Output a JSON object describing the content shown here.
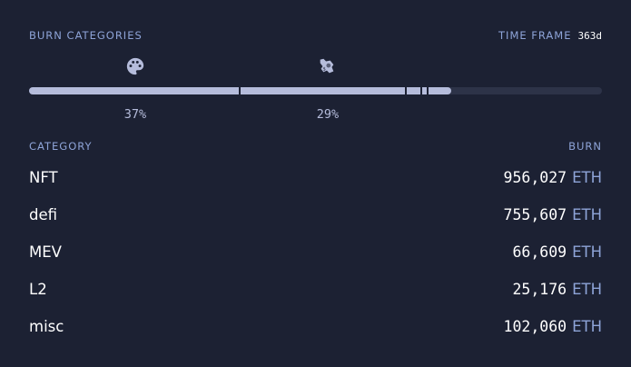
{
  "header": {
    "title": "BURN CATEGORIES",
    "time_frame_label": "TIME FRAME",
    "time_frame_value": "363d"
  },
  "bar": {
    "segments": [
      {
        "category": "NFT",
        "share": 0.37,
        "icon": "palette-icon",
        "label": "37%"
      },
      {
        "category": "defi",
        "share": 0.29,
        "icon": "defi-icon",
        "label": "29%"
      },
      {
        "category": "MEV",
        "share": 0.027
      },
      {
        "category": "L2",
        "share": 0.01
      },
      {
        "category": "misc",
        "share": 0.04
      }
    ],
    "colors": {
      "fill": "#b5bcdb",
      "track": "#2d3348"
    }
  },
  "table": {
    "col_category": "CATEGORY",
    "col_burn": "BURN",
    "rows": [
      {
        "name": "NFT",
        "value": "956,027",
        "unit": "ETH"
      },
      {
        "name": "defi",
        "value": "755,607",
        "unit": "ETH"
      },
      {
        "name": "MEV",
        "value": "66,609",
        "unit": "ETH"
      },
      {
        "name": "L2",
        "value": "25,176",
        "unit": "ETH"
      },
      {
        "name": "misc",
        "value": "102,060",
        "unit": "ETH"
      }
    ]
  }
}
